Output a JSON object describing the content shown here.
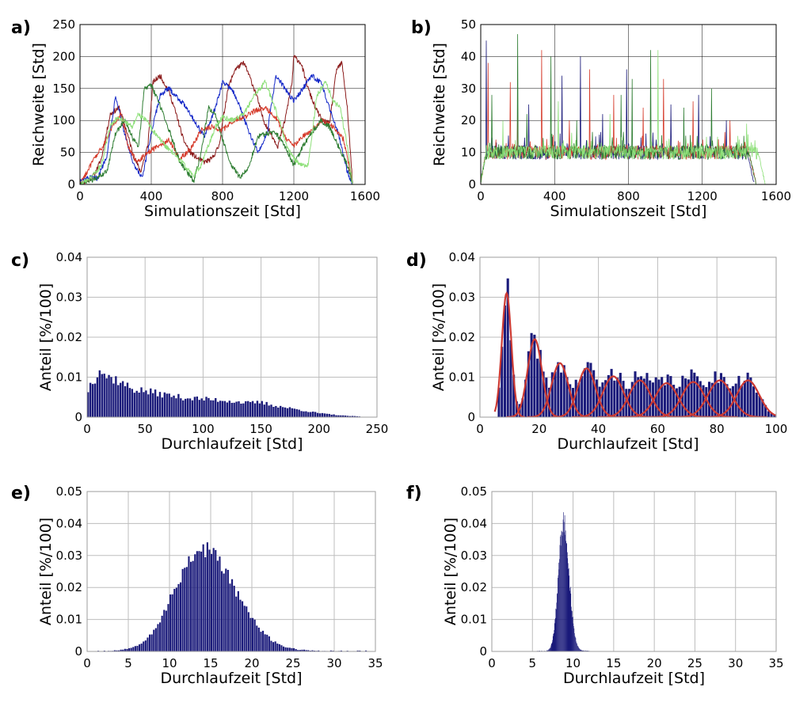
{
  "colors": {
    "navy": "#1a1a7a",
    "blue": "#1428c8",
    "darkred": "#8b1a1a",
    "red": "#d63c2c",
    "green": "#2e7d32",
    "lightgreen": "#8ee07a",
    "fit": "#cc3a33"
  },
  "chart_data": [
    {
      "panel": "a)",
      "type": "line",
      "xlabel": "Simulationszeit [Std]",
      "ylabel": "Reichweite [Std]",
      "xlim": [
        0,
        1600
      ],
      "ylim": [
        0,
        250
      ],
      "xticks": [
        0,
        400,
        800,
        1200,
        1600
      ],
      "yticks": [
        0,
        50,
        100,
        150,
        200,
        250
      ],
      "grid": true,
      "noise": 4,
      "series": [
        {
          "color": "darkred",
          "x": [
            0,
            40,
            80,
            120,
            170,
            220,
            260,
            300,
            340,
            380,
            410,
            450,
            500,
            540,
            580,
            620,
            660,
            700,
            740,
            780,
            830,
            870,
            920,
            950,
            990,
            1030,
            1070,
            1110,
            1150,
            1190,
            1200,
            1240,
            1280,
            1320,
            1360,
            1400,
            1440,
            1470,
            1500,
            1530
          ],
          "y": [
            0,
            5,
            15,
            40,
            110,
            120,
            85,
            45,
            20,
            60,
            160,
            170,
            145,
            110,
            70,
            50,
            40,
            35,
            40,
            60,
            150,
            180,
            190,
            170,
            140,
            100,
            80,
            60,
            100,
            160,
            200,
            190,
            150,
            120,
            100,
            95,
            180,
            190,
            120,
            0
          ]
        },
        {
          "color": "blue",
          "x": [
            0,
            50,
            100,
            150,
            200,
            250,
            300,
            350,
            400,
            450,
            500,
            550,
            600,
            650,
            700,
            760,
            800,
            850,
            900,
            950,
            1000,
            1050,
            1100,
            1150,
            1200,
            1250,
            1300,
            1350,
            1400,
            1450,
            1500,
            1530
          ],
          "y": [
            5,
            10,
            10,
            45,
            140,
            80,
            30,
            10,
            80,
            140,
            150,
            135,
            120,
            95,
            75,
            120,
            160,
            150,
            120,
            80,
            50,
            80,
            170,
            150,
            130,
            150,
            170,
            160,
            120,
            80,
            20,
            0
          ]
        },
        {
          "color": "red",
          "x": [
            0,
            40,
            80,
            130,
            180,
            230,
            270,
            320,
            380,
            440,
            500,
            560,
            620,
            680,
            740,
            800,
            860,
            920,
            980,
            1040,
            1100,
            1160,
            1200,
            1250,
            1300,
            1360,
            1420,
            1480,
            1530
          ],
          "y": [
            0,
            20,
            40,
            60,
            90,
            110,
            60,
            35,
            50,
            60,
            70,
            40,
            55,
            85,
            90,
            85,
            100,
            105,
            115,
            120,
            105,
            70,
            60,
            75,
            85,
            100,
            90,
            70,
            0
          ]
        },
        {
          "color": "green",
          "x": [
            0,
            50,
            100,
            150,
            200,
            250,
            300,
            330,
            360,
            400,
            440,
            500,
            560,
            600,
            640,
            680,
            720,
            760,
            800,
            850,
            900,
            950,
            1000,
            1050,
            1100,
            1150,
            1200,
            1250,
            1300,
            1350,
            1400,
            1450,
            1500,
            1530
          ],
          "y": [
            0,
            5,
            10,
            20,
            80,
            100,
            70,
            60,
            150,
            155,
            130,
            85,
            35,
            20,
            5,
            50,
            120,
            110,
            70,
            30,
            10,
            30,
            75,
            80,
            80,
            60,
            30,
            60,
            80,
            100,
            90,
            60,
            30,
            0
          ]
        },
        {
          "color": "lightgreen",
          "x": [
            0,
            60,
            120,
            170,
            210,
            250,
            290,
            330,
            370,
            420,
            480,
            540,
            600,
            640,
            680,
            720,
            760,
            800,
            860,
            920,
            980,
            1040,
            1080,
            1120,
            1160,
            1200,
            1240,
            1280,
            1330,
            1380,
            1420,
            1460,
            1500,
            1530
          ],
          "y": [
            0,
            10,
            30,
            90,
            105,
            100,
            90,
            110,
            100,
            80,
            60,
            45,
            25,
            15,
            30,
            60,
            90,
            105,
            100,
            110,
            140,
            160,
            130,
            100,
            60,
            40,
            30,
            30,
            140,
            160,
            130,
            120,
            60,
            0
          ]
        }
      ]
    },
    {
      "panel": "b)",
      "type": "line",
      "xlabel": "Simulationszeit [Std]",
      "ylabel": "Reichweite [Std]",
      "xlim": [
        0,
        1600
      ],
      "ylim": [
        0,
        50
      ],
      "xticks": [
        0,
        400,
        800,
        1200,
        1600
      ],
      "yticks": [
        0,
        10,
        20,
        30,
        40,
        50
      ],
      "grid": true,
      "baseline": 10,
      "noise": 2.2,
      "start_x": 40,
      "end_x": 1440,
      "series": [
        {
          "color": "navy",
          "end_x": 1440,
          "spikes": [
            [
              30,
              45
            ],
            [
              260,
              25
            ],
            [
              440,
              34
            ],
            [
              540,
              40
            ],
            [
              660,
              22
            ],
            [
              790,
              36
            ],
            [
              1030,
              25
            ],
            [
              1180,
              28
            ],
            [
              1330,
              20
            ]
          ]
        },
        {
          "color": "red",
          "end_x": 1450,
          "spikes": [
            [
              40,
              38
            ],
            [
              160,
              32
            ],
            [
              200,
              25
            ],
            [
              330,
              42
            ],
            [
              480,
              20
            ],
            [
              590,
              36
            ],
            [
              720,
              28
            ],
            [
              880,
              24
            ],
            [
              990,
              33
            ],
            [
              1150,
              26
            ],
            [
              1350,
              20
            ]
          ]
        },
        {
          "color": "green",
          "end_x": 1450,
          "spikes": [
            [
              60,
              28
            ],
            [
              200,
              47
            ],
            [
              250,
              22
            ],
            [
              380,
              40
            ],
            [
              520,
              20
            ],
            [
              760,
              28
            ],
            [
              820,
              33
            ],
            [
              920,
              42
            ],
            [
              1100,
              24
            ],
            [
              1250,
              30
            ]
          ]
        },
        {
          "color": "lightgreen",
          "end_x": 1500,
          "spikes": [
            [
              120,
              20
            ],
            [
              420,
              26
            ],
            [
              700,
              22
            ],
            [
              960,
              42
            ],
            [
              1440,
              19
            ]
          ]
        }
      ]
    },
    {
      "panel": "c)",
      "type": "bar",
      "xlabel": "Durchlaufzeit [Std]",
      "ylabel": "Anteil [%/100]",
      "xlim": [
        0,
        250
      ],
      "ylim": [
        0,
        0.04
      ],
      "xticks": [
        0,
        50,
        100,
        150,
        200,
        250
      ],
      "yticks": [
        0,
        0.01,
        0.02,
        0.03,
        0.04
      ],
      "grid": true,
      "bin_width": 2,
      "profile_x": [
        0,
        4,
        8,
        10,
        12,
        14,
        18,
        25,
        30,
        40,
        60,
        80,
        100,
        120,
        140,
        150,
        160,
        180,
        200,
        220,
        240
      ],
      "profile_y": [
        0.006,
        0.009,
        0.01,
        0.013,
        0.012,
        0.011,
        0.01,
        0.0095,
        0.0085,
        0.007,
        0.006,
        0.005,
        0.0045,
        0.0042,
        0.0035,
        0.0037,
        0.003,
        0.002,
        0.001,
        0.0004,
        0.0001
      ],
      "profile_xmax": 236
    },
    {
      "panel": "d)",
      "type": "bar",
      "xlabel": "Durchlaufzeit [Std]",
      "ylabel": "Anteil [%/100]",
      "xlim": [
        0,
        100
      ],
      "ylim": [
        0,
        0.04
      ],
      "xticks": [
        0,
        20,
        40,
        60,
        80,
        100
      ],
      "yticks": [
        0,
        0.01,
        0.02,
        0.03,
        0.04
      ],
      "grid": true,
      "bin_width": 1,
      "fit_curves": [
        {
          "mu": 9,
          "sigma": 1.6,
          "amp": 0.031
        },
        {
          "mu": 18.5,
          "sigma": 2.4,
          "amp": 0.0195
        },
        {
          "mu": 27,
          "sigma": 2.8,
          "amp": 0.0135
        },
        {
          "mu": 36,
          "sigma": 3.0,
          "amp": 0.0122
        },
        {
          "mu": 45,
          "sigma": 3.5,
          "amp": 0.0102
        },
        {
          "mu": 54,
          "sigma": 3.6,
          "amp": 0.0092
        },
        {
          "mu": 63,
          "sigma": 3.8,
          "amp": 0.0085
        },
        {
          "mu": 72,
          "sigma": 3.8,
          "amp": 0.0088
        },
        {
          "mu": 81,
          "sigma": 4.0,
          "amp": 0.0092
        },
        {
          "mu": 90.5,
          "sigma": 3.8,
          "amp": 0.0092
        }
      ]
    },
    {
      "panel": "e)",
      "type": "bar",
      "xlabel": "Durchlaufzeit [Std]",
      "ylabel": "Anteil [%/100]",
      "xlim": [
        0,
        35
      ],
      "ylim": [
        0,
        0.05
      ],
      "xticks": [
        0,
        5,
        10,
        15,
        20,
        25,
        30,
        35
      ],
      "yticks": [
        0,
        0.01,
        0.02,
        0.03,
        0.04,
        0.05
      ],
      "grid": true,
      "bin_width": 0.25,
      "mode_x": 14,
      "mode_y": 0.032,
      "sigma_left": 3.3,
      "sigma_right": 4.0,
      "xmin": 1,
      "xmax": 34
    },
    {
      "panel": "f)",
      "type": "bar",
      "xlabel": "Durchlaufzeit [Std]",
      "ylabel": "Anteil [%/100]",
      "xlim": [
        0,
        35
      ],
      "ylim": [
        0,
        0.05
      ],
      "xticks": [
        0,
        5,
        10,
        15,
        20,
        25,
        30,
        35
      ],
      "yticks": [
        0,
        0.01,
        0.02,
        0.03,
        0.04,
        0.05
      ],
      "grid": true,
      "bin_width": 0.05,
      "mode_x": 8.8,
      "mode_y": 0.04,
      "sigma_left": 0.6,
      "sigma_right": 0.7,
      "xmin": 5.5,
      "xmax": 12
    }
  ]
}
